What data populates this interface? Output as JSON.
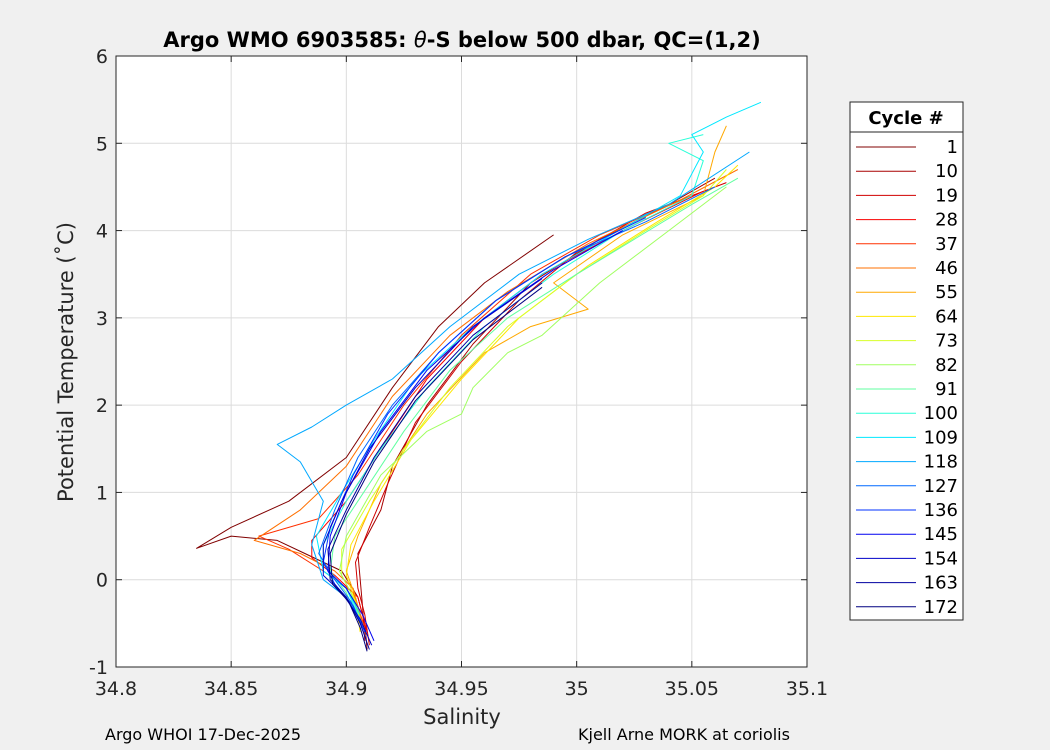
{
  "chart_data": {
    "type": "line",
    "title_prefix": "Argo WMO 6903585: ",
    "title_theta": "θ",
    "title_suffix": "-S below 500 dbar,  QC=(1,2)",
    "xlabel": "Salinity",
    "ylabel": "Potential Temperature (˚C)",
    "xlim": [
      34.8,
      35.1
    ],
    "ylim": [
      -1,
      6
    ],
    "xticks": [
      34.8,
      34.85,
      34.9,
      34.95,
      35,
      35.05,
      35.1
    ],
    "xtick_labels": [
      "34.8",
      "34.85",
      "34.9",
      "34.95",
      "35",
      "35.05",
      "35.1"
    ],
    "yticks": [
      -1,
      0,
      1,
      2,
      3,
      4,
      5,
      6
    ],
    "ytick_labels": [
      "-1",
      "0",
      "1",
      "2",
      "3",
      "4",
      "5",
      "6"
    ],
    "grid": true,
    "colormap": "jet",
    "legend": {
      "title": "Cycle #",
      "placement": "right-outside",
      "entries": [
        {
          "label": "1",
          "color": "#800000"
        },
        {
          "label": "10",
          "color": "#a80000"
        },
        {
          "label": "19",
          "color": "#d00000"
        },
        {
          "label": "28",
          "color": "#f80000"
        },
        {
          "label": "37",
          "color": "#ff3000"
        },
        {
          "label": "46",
          "color": "#ff7000"
        },
        {
          "label": "55",
          "color": "#ffa800"
        },
        {
          "label": "64",
          "color": "#ffe800"
        },
        {
          "label": "73",
          "color": "#d8ff28"
        },
        {
          "label": "82",
          "color": "#a0ff60"
        },
        {
          "label": "91",
          "color": "#60ffa0"
        },
        {
          "label": "100",
          "color": "#28ffd8"
        },
        {
          "label": "109",
          "color": "#00e8ff"
        },
        {
          "label": "118",
          "color": "#00a8ff"
        },
        {
          "label": "127",
          "color": "#0068ff"
        },
        {
          "label": "136",
          "color": "#0030ff"
        },
        {
          "label": "145",
          "color": "#0000f0"
        },
        {
          "label": "154",
          "color": "#0000c8"
        },
        {
          "label": "163",
          "color": "#0000a0"
        },
        {
          "label": "172",
          "color": "#000080"
        }
      ]
    },
    "series": [
      {
        "name": "1",
        "color": "#800000",
        "points": [
          [
            34.909,
            -0.8
          ],
          [
            34.908,
            -0.5
          ],
          [
            34.905,
            -0.2
          ],
          [
            34.898,
            0.1
          ],
          [
            34.882,
            0.3
          ],
          [
            34.87,
            0.45
          ],
          [
            34.85,
            0.5
          ],
          [
            34.835,
            0.36
          ],
          [
            34.85,
            0.6
          ],
          [
            34.875,
            0.9
          ],
          [
            34.9,
            1.4
          ],
          [
            34.92,
            2.2
          ],
          [
            34.94,
            2.9
          ],
          [
            34.96,
            3.4
          ],
          [
            34.99,
            3.95
          ]
        ]
      },
      {
        "name": "10",
        "color": "#a80000",
        "points": [
          [
            34.908,
            -0.7
          ],
          [
            34.907,
            -0.3
          ],
          [
            34.906,
            0.0
          ],
          [
            34.905,
            0.3
          ],
          [
            34.915,
            0.8
          ],
          [
            34.92,
            1.3
          ],
          [
            34.935,
            2.0
          ],
          [
            34.955,
            2.7
          ],
          [
            34.98,
            3.4
          ],
          [
            35.01,
            3.9
          ],
          [
            35.04,
            4.3
          ],
          [
            35.06,
            4.6
          ]
        ]
      },
      {
        "name": "19",
        "color": "#d00000",
        "points": [
          [
            34.91,
            -0.75
          ],
          [
            34.908,
            -0.4
          ],
          [
            34.905,
            -0.1
          ],
          [
            34.904,
            0.2
          ],
          [
            34.91,
            0.6
          ],
          [
            34.918,
            1.1
          ],
          [
            34.93,
            1.8
          ],
          [
            34.95,
            2.5
          ],
          [
            34.975,
            3.2
          ],
          [
            35.0,
            3.75
          ],
          [
            35.03,
            4.2
          ],
          [
            35.065,
            4.55
          ]
        ]
      },
      {
        "name": "28",
        "color": "#f80000",
        "points": [
          [
            34.909,
            -0.6
          ],
          [
            34.905,
            -0.2
          ],
          [
            34.895,
            0.05
          ],
          [
            34.885,
            0.25
          ],
          [
            34.885,
            0.45
          ],
          [
            34.9,
            0.9
          ],
          [
            34.915,
            1.5
          ],
          [
            34.935,
            2.3
          ],
          [
            34.96,
            3.0
          ],
          [
            34.985,
            3.5
          ],
          [
            35.02,
            4.0
          ],
          [
            35.055,
            4.45
          ]
        ]
      },
      {
        "name": "37",
        "color": "#ff3000",
        "points": [
          [
            34.908,
            -0.55
          ],
          [
            34.903,
            -0.15
          ],
          [
            34.89,
            0.1
          ],
          [
            34.875,
            0.35
          ],
          [
            34.862,
            0.5
          ],
          [
            34.888,
            0.7
          ],
          [
            34.905,
            1.2
          ],
          [
            34.925,
            2.0
          ],
          [
            34.95,
            2.8
          ],
          [
            34.98,
            3.5
          ],
          [
            35.01,
            3.95
          ],
          [
            35.05,
            4.4
          ]
        ]
      },
      {
        "name": "46",
        "color": "#ff7000",
        "points": [
          [
            34.907,
            -0.5
          ],
          [
            34.903,
            -0.1
          ],
          [
            34.895,
            0.1
          ],
          [
            34.88,
            0.3
          ],
          [
            34.86,
            0.45
          ],
          [
            34.88,
            0.8
          ],
          [
            34.9,
            1.3
          ],
          [
            34.92,
            2.1
          ],
          [
            34.945,
            2.8
          ],
          [
            34.97,
            3.3
          ],
          [
            35.005,
            3.85
          ],
          [
            35.045,
            4.35
          ],
          [
            35.07,
            4.7
          ]
        ]
      },
      {
        "name": "55",
        "color": "#ffa800",
        "points": [
          [
            34.907,
            -0.55
          ],
          [
            34.904,
            -0.2
          ],
          [
            34.9,
            0.1
          ],
          [
            34.905,
            0.5
          ],
          [
            34.915,
            1.1
          ],
          [
            34.935,
            1.9
          ],
          [
            34.96,
            2.6
          ],
          [
            34.98,
            2.9
          ],
          [
            35.005,
            3.1
          ],
          [
            34.99,
            3.4
          ],
          [
            35.02,
            3.95
          ],
          [
            35.055,
            4.4
          ],
          [
            35.06,
            4.9
          ],
          [
            35.065,
            5.2
          ]
        ]
      },
      {
        "name": "64",
        "color": "#ffe800",
        "points": [
          [
            34.906,
            -0.6
          ],
          [
            34.904,
            -0.25
          ],
          [
            34.9,
            0.05
          ],
          [
            34.902,
            0.4
          ],
          [
            34.912,
            0.9
          ],
          [
            34.928,
            1.6
          ],
          [
            34.95,
            2.3
          ],
          [
            34.975,
            3.0
          ],
          [
            35.005,
            3.6
          ],
          [
            35.035,
            4.1
          ],
          [
            35.06,
            4.5
          ],
          [
            35.07,
            4.75
          ]
        ]
      },
      {
        "name": "73",
        "color": "#d8ff28",
        "points": [
          [
            34.906,
            -0.5
          ],
          [
            34.903,
            -0.2
          ],
          [
            34.898,
            0.05
          ],
          [
            34.898,
            0.35
          ],
          [
            34.91,
            0.9
          ],
          [
            34.925,
            1.5
          ],
          [
            34.945,
            2.2
          ],
          [
            34.97,
            2.9
          ],
          [
            35.0,
            3.5
          ],
          [
            35.03,
            4.0
          ],
          [
            35.055,
            4.4
          ],
          [
            35.065,
            4.7
          ]
        ]
      },
      {
        "name": "82",
        "color": "#a0ff60",
        "points": [
          [
            34.906,
            -0.45
          ],
          [
            34.902,
            -0.15
          ],
          [
            34.897,
            0.1
          ],
          [
            34.9,
            0.5
          ],
          [
            34.915,
            1.2
          ],
          [
            34.935,
            1.7
          ],
          [
            34.95,
            1.9
          ],
          [
            34.955,
            2.2
          ],
          [
            34.97,
            2.6
          ],
          [
            34.985,
            2.8
          ],
          [
            35.01,
            3.4
          ],
          [
            35.04,
            4.0
          ],
          [
            35.065,
            4.5
          ]
        ]
      },
      {
        "name": "91",
        "color": "#60ffa0",
        "points": [
          [
            34.905,
            -0.45
          ],
          [
            34.9,
            -0.15
          ],
          [
            34.893,
            0.1
          ],
          [
            34.895,
            0.5
          ],
          [
            34.91,
            1.1
          ],
          [
            34.925,
            1.7
          ],
          [
            34.945,
            2.4
          ],
          [
            34.97,
            3.0
          ],
          [
            35.0,
            3.5
          ],
          [
            35.025,
            3.9
          ],
          [
            35.05,
            4.3
          ],
          [
            35.07,
            4.6
          ]
        ]
      },
      {
        "name": "100",
        "color": "#28ffd8",
        "points": [
          [
            34.905,
            -0.4
          ],
          [
            34.9,
            -0.1
          ],
          [
            34.89,
            0.1
          ],
          [
            34.89,
            0.4
          ],
          [
            34.9,
            0.9
          ],
          [
            34.915,
            1.5
          ],
          [
            34.935,
            2.2
          ],
          [
            34.96,
            2.9
          ],
          [
            34.99,
            3.5
          ],
          [
            35.02,
            4.0
          ],
          [
            35.05,
            4.4
          ],
          [
            35.055,
            4.8
          ],
          [
            35.04,
            5.0
          ],
          [
            35.055,
            5.1
          ]
        ]
      },
      {
        "name": "109",
        "color": "#00e8ff",
        "points": [
          [
            34.906,
            -0.4
          ],
          [
            34.9,
            -0.1
          ],
          [
            34.89,
            0.1
          ],
          [
            34.887,
            0.5
          ],
          [
            34.898,
            1.0
          ],
          [
            34.912,
            1.6
          ],
          [
            34.93,
            2.3
          ],
          [
            34.955,
            2.9
          ],
          [
            34.985,
            3.5
          ],
          [
            35.015,
            3.95
          ],
          [
            35.045,
            4.4
          ],
          [
            35.055,
            4.9
          ],
          [
            35.05,
            5.1
          ],
          [
            35.065,
            5.3
          ],
          [
            35.08,
            5.47
          ]
        ]
      },
      {
        "name": "118",
        "color": "#00a8ff",
        "points": [
          [
            34.907,
            -0.5
          ],
          [
            34.9,
            -0.2
          ],
          [
            34.89,
            0.0
          ],
          [
            34.885,
            0.4
          ],
          [
            34.89,
            0.9
          ],
          [
            34.88,
            1.35
          ],
          [
            34.87,
            1.55
          ],
          [
            34.885,
            1.75
          ],
          [
            34.9,
            2.0
          ],
          [
            34.92,
            2.3
          ],
          [
            34.945,
            2.9
          ],
          [
            34.975,
            3.5
          ],
          [
            35.005,
            3.9
          ],
          [
            35.04,
            4.3
          ],
          [
            35.075,
            4.9
          ]
        ]
      },
      {
        "name": "127",
        "color": "#0068ff",
        "points": [
          [
            34.907,
            -0.55
          ],
          [
            34.902,
            -0.25
          ],
          [
            34.895,
            0.0
          ],
          [
            34.888,
            0.3
          ],
          [
            34.895,
            0.8
          ],
          [
            34.905,
            1.4
          ],
          [
            34.92,
            2.0
          ],
          [
            34.94,
            2.6
          ],
          [
            34.965,
            3.2
          ],
          [
            34.995,
            3.7
          ],
          [
            35.03,
            4.1
          ],
          [
            35.06,
            4.5
          ]
        ]
      },
      {
        "name": "136",
        "color": "#0030ff",
        "points": [
          [
            34.908,
            -0.6
          ],
          [
            34.903,
            -0.3
          ],
          [
            34.895,
            -0.05
          ],
          [
            34.89,
            0.2
          ],
          [
            34.893,
            0.6
          ],
          [
            34.903,
            1.2
          ],
          [
            34.918,
            1.9
          ],
          [
            34.94,
            2.6
          ],
          [
            34.965,
            3.2
          ],
          [
            34.995,
            3.7
          ],
          [
            35.03,
            4.15
          ]
        ]
      },
      {
        "name": "145",
        "color": "#0000f0",
        "points": [
          [
            34.912,
            -0.7
          ],
          [
            34.907,
            -0.4
          ],
          [
            34.9,
            -0.1
          ],
          [
            34.892,
            0.1
          ],
          [
            34.893,
            0.5
          ],
          [
            34.9,
            1.0
          ],
          [
            34.915,
            1.7
          ],
          [
            34.935,
            2.4
          ],
          [
            34.96,
            3.0
          ],
          [
            34.99,
            3.55
          ],
          [
            35.02,
            4.0
          ]
        ]
      },
      {
        "name": "154",
        "color": "#0000c8",
        "points": [
          [
            34.911,
            -0.75
          ],
          [
            34.906,
            -0.45
          ],
          [
            34.898,
            -0.15
          ],
          [
            34.89,
            0.05
          ],
          [
            34.89,
            0.4
          ],
          [
            34.898,
            0.9
          ],
          [
            34.91,
            1.5
          ],
          [
            34.93,
            2.2
          ],
          [
            34.955,
            2.9
          ],
          [
            34.985,
            3.45
          ]
        ]
      },
      {
        "name": "163",
        "color": "#0000a0",
        "points": [
          [
            34.91,
            -0.8
          ],
          [
            34.906,
            -0.5
          ],
          [
            34.9,
            -0.2
          ],
          [
            34.893,
            0.0
          ],
          [
            34.892,
            0.35
          ],
          [
            34.9,
            0.8
          ],
          [
            34.912,
            1.4
          ],
          [
            34.93,
            2.1
          ],
          [
            34.955,
            2.8
          ],
          [
            34.985,
            3.4
          ]
        ]
      },
      {
        "name": "172",
        "color": "#000080",
        "points": [
          [
            34.909,
            -0.82
          ],
          [
            34.906,
            -0.55
          ],
          [
            34.901,
            -0.25
          ],
          [
            34.894,
            -0.05
          ],
          [
            34.893,
            0.3
          ],
          [
            34.9,
            0.75
          ],
          [
            34.912,
            1.35
          ],
          [
            34.93,
            2.05
          ],
          [
            34.955,
            2.75
          ],
          [
            34.985,
            3.35
          ]
        ]
      }
    ]
  },
  "footer": {
    "left": "Argo WHOI 17-Dec-2025",
    "right": "Kjell Arne MORK at coriolis"
  }
}
